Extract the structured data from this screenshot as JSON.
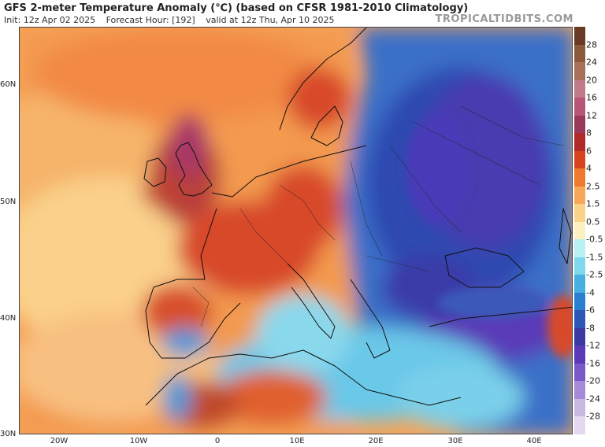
{
  "header": {
    "title": "GFS 2-meter Temperature Anomaly (℃) (based on CFSR 1981-2010 Climatology)",
    "init": "Init: 12z Apr 02 2025",
    "forecast_hour": "Forecast Hour: [192]",
    "valid": "valid at 12z Thu, Apr 10 2025",
    "brand": "TROPICALTIDBITS.COM"
  },
  "map": {
    "lat_labels": [
      "60N",
      "50N",
      "40N",
      "30N"
    ],
    "lon_labels": [
      "20W",
      "10W",
      "0",
      "10E",
      "20E",
      "30E",
      "40E"
    ]
  },
  "colorbar": {
    "labels": [
      "28",
      "24",
      "20",
      "16",
      "12",
      "8",
      "6",
      "4",
      "2.5",
      "1.5",
      "0.5",
      "-0.5",
      "-1.5",
      "-2.5",
      "-4",
      "-6",
      "-8",
      "-12",
      "-16",
      "-20",
      "-24",
      "-28"
    ],
    "colors": [
      "#6b3a24",
      "#8b5a3c",
      "#a87058",
      "#c27a8a",
      "#b8567a",
      "#9a3a5a",
      "#b02a2a",
      "#d84420",
      "#ee7a2e",
      "#f6a858",
      "#fad38a",
      "#fdf0c0",
      "#b8f0f4",
      "#7fd8ec",
      "#48b0e0",
      "#2a80d0",
      "#2e58b8",
      "#3a3aa0",
      "#5a3ab8",
      "#7a58c8",
      "#a48ad8",
      "#c8b8e4",
      "#e4d8f0"
    ]
  }
}
